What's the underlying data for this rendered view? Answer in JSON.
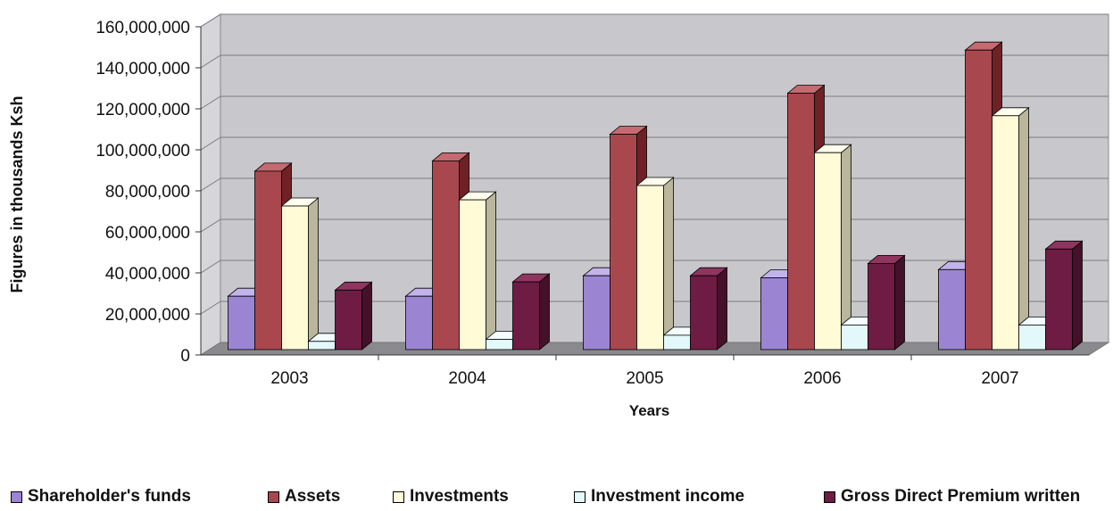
{
  "chart_data": {
    "type": "bar",
    "variant": "3d-clustered-column",
    "categories": [
      "2003",
      "2004",
      "2005",
      "2006",
      "2007"
    ],
    "series": [
      {
        "name": "Shareholder's funds",
        "values": [
          26000000,
          26000000,
          36000000,
          35000000,
          39000000
        ],
        "color": "#9b85d3",
        "dark": "#6a5a99",
        "light": "#c2b4ea"
      },
      {
        "name": "Assets",
        "values": [
          87000000,
          92000000,
          105000000,
          125000000,
          146000000
        ],
        "color": "#a8484e",
        "dark": "#6e2226",
        "light": "#c46a70"
      },
      {
        "name": "Investments",
        "values": [
          70000000,
          73000000,
          80000000,
          96000000,
          114000000
        ],
        "color": "#fffbd6",
        "dark": "#b9b69c",
        "light": "#ffffee"
      },
      {
        "name": "Investment income",
        "values": [
          4000000,
          5000000,
          7000000,
          12000000,
          12000000
        ],
        "color": "#e2f8fb",
        "dark": "#93aab0",
        "light": "#f3fdfe"
      },
      {
        "name": "Gross Direct Premium written",
        "values": [
          29000000,
          33000000,
          36000000,
          42000000,
          49000000
        ],
        "color": "#6e1c44",
        "dark": "#45102a",
        "light": "#8e3560"
      }
    ],
    "y_ticks": [
      "0",
      "20,000,000",
      "40,000,000",
      "60,000,000",
      "80,000,000",
      "100,000,000",
      "120,000,000",
      "140,000,000",
      "160,000,000"
    ],
    "ylim": [
      0,
      160000000
    ],
    "ylabel": "Figures in thousands Ksh",
    "xlabel": "Years",
    "grid": true,
    "legend_position": "bottom",
    "wall_color": "#c8c8cc",
    "floor_color": "#8a8a8e"
  }
}
